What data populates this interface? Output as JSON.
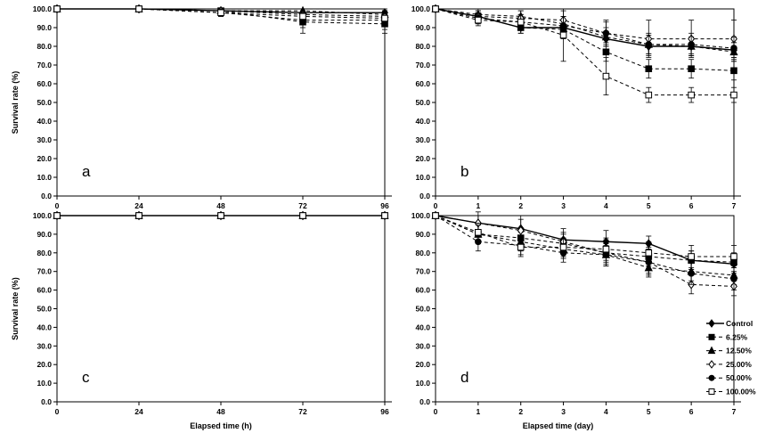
{
  "chart_data": [
    {
      "panel": "a",
      "type": "line",
      "panel_label": "a",
      "ylabel": "Survival rate (%)",
      "xlabel": "",
      "x": [
        0,
        24,
        48,
        72,
        96
      ],
      "x_ticks": [
        "0",
        "24",
        "48",
        "72",
        "96"
      ],
      "xlim": [
        0,
        96
      ],
      "y_ticks": [
        "0.0",
        "10.0",
        "20.0",
        "30.0",
        "40.0",
        "50.0",
        "60.0",
        "70.0",
        "80.0",
        "90.0",
        "100.0"
      ],
      "ylim": [
        0,
        100
      ],
      "series": [
        {
          "key": "control",
          "values": [
            100,
            100,
            99,
            98,
            98
          ],
          "err": [
            0,
            0,
            1,
            2,
            2
          ]
        },
        {
          "key": "s625",
          "values": [
            100,
            100,
            99,
            93,
            92
          ],
          "err": [
            0,
            0,
            1,
            6,
            5
          ]
        },
        {
          "key": "s1250",
          "values": [
            100,
            100,
            99,
            99,
            97
          ],
          "err": [
            0,
            0,
            1,
            1,
            2
          ]
        },
        {
          "key": "s2500",
          "values": [
            100,
            100,
            99,
            97,
            96
          ],
          "err": [
            0,
            0,
            1,
            2,
            3
          ]
        },
        {
          "key": "s5000",
          "values": [
            100,
            100,
            98,
            94,
            94
          ],
          "err": [
            0,
            0,
            2,
            4,
            5
          ]
        },
        {
          "key": "s10000",
          "values": [
            100,
            100,
            98,
            96,
            95
          ],
          "err": [
            0,
            0,
            2,
            3,
            3
          ]
        }
      ]
    },
    {
      "panel": "b",
      "type": "line",
      "panel_label": "b",
      "ylabel": "",
      "xlabel": "",
      "x": [
        0,
        1,
        2,
        3,
        4,
        5,
        6,
        7
      ],
      "x_ticks": [
        "0",
        "1",
        "2",
        "3",
        "4",
        "5",
        "6",
        "7"
      ],
      "xlim": [
        0,
        7
      ],
      "y_ticks": [
        "0.0",
        "10.0",
        "20.0",
        "30.0",
        "40.0",
        "50.0",
        "60.0",
        "70.0",
        "80.0",
        "90.0",
        "100.0"
      ],
      "ylim": [
        0,
        100
      ],
      "series": [
        {
          "key": "control",
          "values": [
            100,
            96,
            90,
            90,
            84,
            80,
            80,
            78
          ],
          "err": [
            0,
            3,
            3,
            4,
            4,
            4,
            4,
            4
          ]
        },
        {
          "key": "s625",
          "values": [
            100,
            96,
            90,
            89,
            77,
            68,
            68,
            67
          ],
          "err": [
            0,
            3,
            3,
            5,
            5,
            5,
            5,
            5
          ]
        },
        {
          "key": "s1250",
          "values": [
            100,
            97,
            96,
            92,
            85,
            81,
            80,
            77
          ],
          "err": [
            0,
            3,
            3,
            4,
            5,
            5,
            5,
            5
          ]
        },
        {
          "key": "s2500",
          "values": [
            100,
            96,
            95,
            94,
            87,
            84,
            84,
            84
          ],
          "err": [
            0,
            3,
            4,
            5,
            7,
            10,
            10,
            10
          ]
        },
        {
          "key": "s5000",
          "values": [
            100,
            95,
            93,
            91,
            87,
            81,
            81,
            79
          ],
          "err": [
            0,
            3,
            4,
            5,
            6,
            6,
            6,
            6
          ]
        },
        {
          "key": "s10000",
          "values": [
            100,
            94,
            93,
            86,
            64,
            54,
            54,
            54
          ],
          "err": [
            0,
            3,
            4,
            14,
            10,
            4,
            4,
            4
          ]
        }
      ]
    },
    {
      "panel": "c",
      "type": "line",
      "panel_label": "c",
      "ylabel": "Survival rate (%)",
      "xlabel": "Elapsed time (h)",
      "x": [
        0,
        24,
        48,
        72,
        96
      ],
      "x_ticks": [
        "0",
        "24",
        "48",
        "72",
        "96"
      ],
      "xlim": [
        0,
        96
      ],
      "y_ticks": [
        "0.0",
        "10.0",
        "20.0",
        "30.0",
        "40.0",
        "50.0",
        "60.0",
        "70.0",
        "80.0",
        "90.0",
        "100.0"
      ],
      "ylim": [
        0,
        100
      ],
      "series": [
        {
          "key": "control",
          "values": [
            100,
            100,
            100,
            100,
            100
          ],
          "err": [
            0,
            0,
            0,
            0,
            0
          ]
        },
        {
          "key": "s625",
          "values": [
            100,
            100,
            100,
            100,
            100
          ],
          "err": [
            0,
            0,
            0,
            0,
            0
          ]
        },
        {
          "key": "s1250",
          "values": [
            100,
            100,
            100,
            100,
            100
          ],
          "err": [
            0,
            0,
            0,
            0,
            0
          ]
        },
        {
          "key": "s2500",
          "values": [
            100,
            100,
            100,
            100,
            100
          ],
          "err": [
            0,
            0,
            0,
            0,
            0
          ]
        },
        {
          "key": "s5000",
          "values": [
            100,
            100,
            100,
            100,
            100
          ],
          "err": [
            0,
            0,
            0,
            0,
            0
          ]
        },
        {
          "key": "s10000",
          "values": [
            100,
            100,
            100,
            100,
            100
          ],
          "err": [
            0,
            0,
            0,
            0,
            0
          ]
        }
      ]
    },
    {
      "panel": "d",
      "type": "line",
      "panel_label": "d",
      "ylabel": "",
      "xlabel": "Elapsed time (day)",
      "x": [
        0,
        1,
        2,
        3,
        4,
        5,
        6,
        7
      ],
      "x_ticks": [
        "0",
        "1",
        "2",
        "3",
        "4",
        "5",
        "6",
        "7"
      ],
      "xlim": [
        0,
        7
      ],
      "y_ticks": [
        "0.0",
        "10.0",
        "20.0",
        "30.0",
        "40.0",
        "50.0",
        "60.0",
        "70.0",
        "80.0",
        "90.0",
        "100.0"
      ],
      "ylim": [
        0,
        100
      ],
      "legend_position": "bottom-right",
      "series": [
        {
          "key": "control",
          "values": [
            100,
            96,
            93,
            87,
            86,
            85,
            76,
            74
          ],
          "err": [
            0,
            4,
            5,
            4,
            6,
            4,
            5,
            5
          ]
        },
        {
          "key": "s625",
          "values": [
            100,
            90,
            88,
            85,
            80,
            78,
            76,
            75
          ],
          "err": [
            0,
            5,
            5,
            5,
            5,
            5,
            5,
            5
          ]
        },
        {
          "key": "s1250",
          "values": [
            100,
            90,
            86,
            82,
            79,
            72,
            70,
            68
          ],
          "err": [
            0,
            5,
            5,
            5,
            5,
            5,
            5,
            5
          ]
        },
        {
          "key": "s2500",
          "values": [
            100,
            96,
            92,
            86,
            80,
            75,
            63,
            62
          ],
          "err": [
            0,
            6,
            8,
            7,
            7,
            7,
            5,
            5
          ]
        },
        {
          "key": "s5000",
          "values": [
            100,
            86,
            84,
            80,
            79,
            75,
            69,
            66
          ],
          "err": [
            0,
            5,
            5,
            5,
            6,
            6,
            6,
            6
          ]
        },
        {
          "key": "s10000",
          "values": [
            100,
            91,
            83,
            83,
            82,
            80,
            78,
            78
          ],
          "err": [
            0,
            5,
            5,
            5,
            6,
            6,
            6,
            6
          ]
        }
      ]
    }
  ],
  "legend": [
    {
      "key": "control",
      "label": "Control",
      "marker": "diamond",
      "fill": "#000000",
      "dash": "none"
    },
    {
      "key": "s625",
      "label": "6.25%",
      "marker": "square",
      "fill": "#000000",
      "dash": "4,3"
    },
    {
      "key": "s1250",
      "label": "12.50%",
      "marker": "triangle",
      "fill": "#000000",
      "dash": "4,3"
    },
    {
      "key": "s2500",
      "label": "25.00%",
      "marker": "diamond",
      "fill": "#ffffff",
      "dash": "4,3"
    },
    {
      "key": "s5000",
      "label": "50.00%",
      "marker": "circle",
      "fill": "#000000",
      "dash": "4,3"
    },
    {
      "key": "s10000",
      "label": "100.00%",
      "marker": "square",
      "fill": "#ffffff",
      "dash": "4,3"
    }
  ]
}
